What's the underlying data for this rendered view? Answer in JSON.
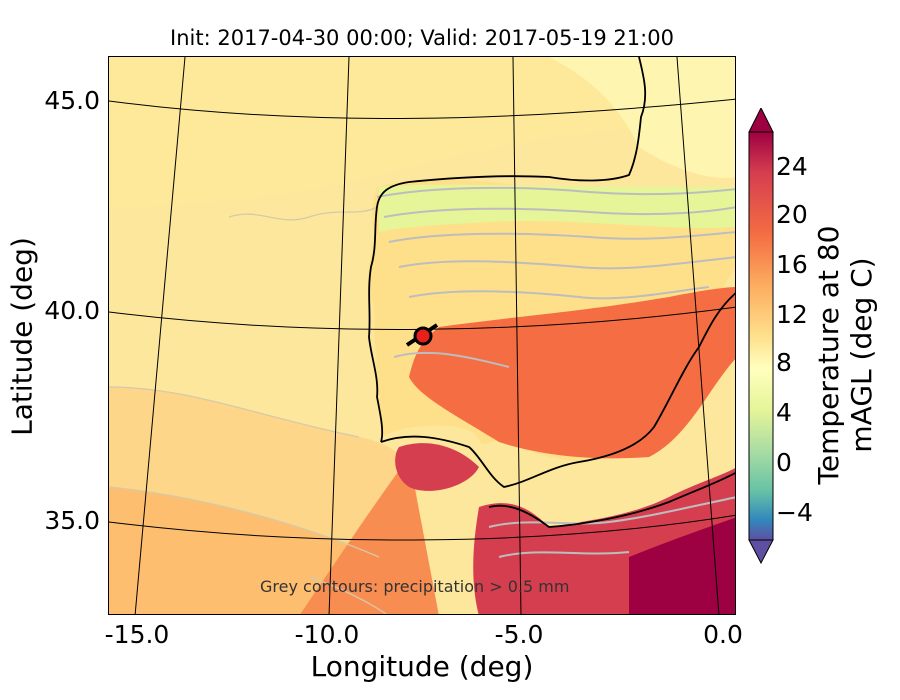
{
  "title": "Init: 2017-04-30 00:00; Valid: 2017-05-19 21:00",
  "xlabel": "Longitude (deg)",
  "ylabel": "Latitude (deg)",
  "annotation": "Grey contours: precipitation > 0.5 mm",
  "colorbar": {
    "label": "Temperature at 80 mAGL (deg C)",
    "ticks": [
      "24",
      "20",
      "16",
      "12",
      "8",
      "4",
      "0",
      "−4"
    ],
    "range": [
      -6,
      28
    ],
    "extend": "both",
    "colormap": "Spectral_r"
  },
  "x_ticks": [
    "-15.0",
    "-10.0",
    "-5.0",
    "0.0"
  ],
  "y_ticks": [
    "45.0",
    "40.0",
    "35.0"
  ],
  "chart_data": {
    "type": "heatmap",
    "title": "Init: 2017-04-30 00:00; Valid: 2017-05-19 21:00",
    "xlabel": "Longitude (deg)",
    "ylabel": "Latitude (deg)",
    "xlim": [
      -16,
      0.2
    ],
    "ylim": [
      32.8,
      46.2
    ],
    "colorbar_range": [
      -6,
      28
    ],
    "marker": {
      "lon": -7.7,
      "lat": 39.3,
      "color": "#e8201c"
    }
  }
}
